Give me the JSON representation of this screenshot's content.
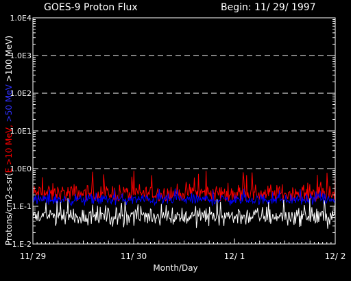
{
  "chart_data": {
    "type": "line",
    "title_left": "GOES-9 Proton Flux",
    "title_right": "Begin: 11/ 29/ 1997",
    "xlabel": "Month/Day",
    "ylabel_prefix": "Protons/cm2-s-sr(",
    "ylabel_parts": [
      {
        "text": "E >10 MeV,",
        "color": "#ff0000"
      },
      {
        "text": " >50 MeV",
        "color": "#0000ff"
      },
      {
        "text": " >100 MeV)",
        "color": "#ffffff"
      }
    ],
    "y_scale": "log",
    "ylim": [
      0.01,
      10000
    ],
    "y_ticks": [
      {
        "value": 0.01,
        "label": "1.E-2"
      },
      {
        "value": 0.1,
        "label": "1.E-1"
      },
      {
        "value": 1,
        "label": "1.0E0"
      },
      {
        "value": 10,
        "label": "1.0E1"
      },
      {
        "value": 100,
        "label": "1.0E2"
      },
      {
        "value": 1000,
        "label": "1.0E3"
      },
      {
        "value": 10000,
        "label": "1.0E4"
      }
    ],
    "grid_y_dashed": [
      1,
      10,
      100,
      1000
    ],
    "x_ticks": [
      {
        "day": 0,
        "label": "11/ 29"
      },
      {
        "day": 1,
        "label": "11/ 30"
      },
      {
        "day": 2,
        "label": "12/ 1"
      },
      {
        "day": 3,
        "label": "12/ 2"
      }
    ],
    "xlim_days": [
      0,
      3
    ],
    "series": [
      {
        "name": "E >10 MeV",
        "color": "#ff0000",
        "typical_flux": 0.22,
        "min_flux": 0.14,
        "max_flux": 0.9
      },
      {
        "name": ">50 MeV",
        "color": "#0000ff",
        "typical_flux": 0.15,
        "min_flux": 0.1,
        "max_flux": 0.3
      },
      {
        "name": ">100 MeV",
        "color": "#ffffff",
        "typical_flux": 0.055,
        "min_flux": 0.025,
        "max_flux": 0.17
      }
    ]
  }
}
